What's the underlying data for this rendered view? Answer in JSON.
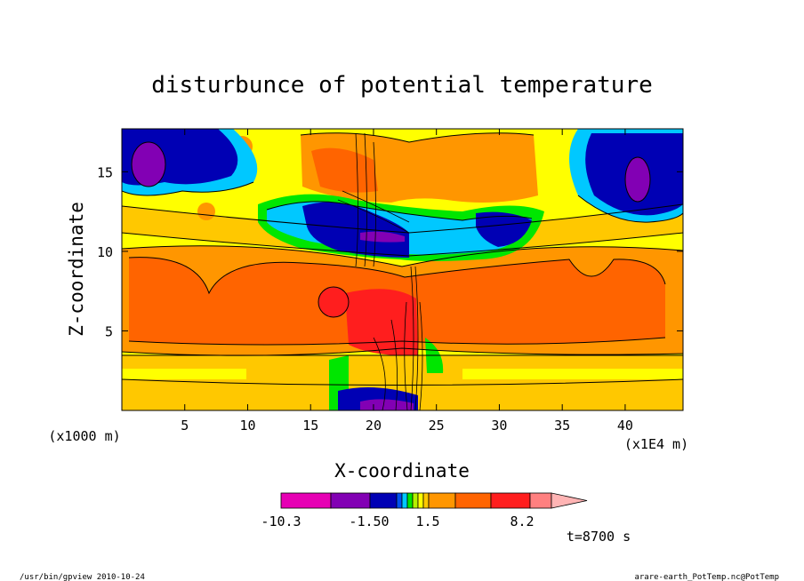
{
  "chart_data": {
    "type": "heatmap",
    "title": "disturbunce of potential temperature",
    "xlabel": "X-coordinate",
    "ylabel": "Z-coordinate",
    "x_unit_left": "(x1000 m)",
    "x_unit_right": "(x1E4 m)",
    "xlim": [
      0,
      44.6
    ],
    "ylim": [
      0,
      17.7
    ],
    "x_ticks": [
      "5",
      "10",
      "15",
      "20",
      "25",
      "30",
      "35",
      "40"
    ],
    "x_tick_values": [
      5,
      10,
      15,
      20,
      25,
      30,
      35,
      40
    ],
    "y_ticks": [
      "5",
      "10",
      "15"
    ],
    "y_tick_values": [
      5,
      10,
      15
    ],
    "colorbar": {
      "labels": [
        "-10.3",
        "-1.50",
        "1.5",
        "8.2"
      ],
      "label_levels": [
        0,
        4,
        6,
        11
      ],
      "colors": [
        "#e600b4",
        "#8200b4",
        "#0000b4",
        "#0050f0",
        "#00c8ff",
        "#00e600",
        "#b4f000",
        "#ffff00",
        "#ffc800",
        "#ff9600",
        "#ff6400",
        "#ff1e1e",
        "#ff8080",
        "#ffb4b4"
      ]
    },
    "time_label": "t=8700 s",
    "footer_left": "/usr/bin/gpview  2010-10-24",
    "footer_right": "arare-earth_PotTemp.nc@PotTemp"
  }
}
